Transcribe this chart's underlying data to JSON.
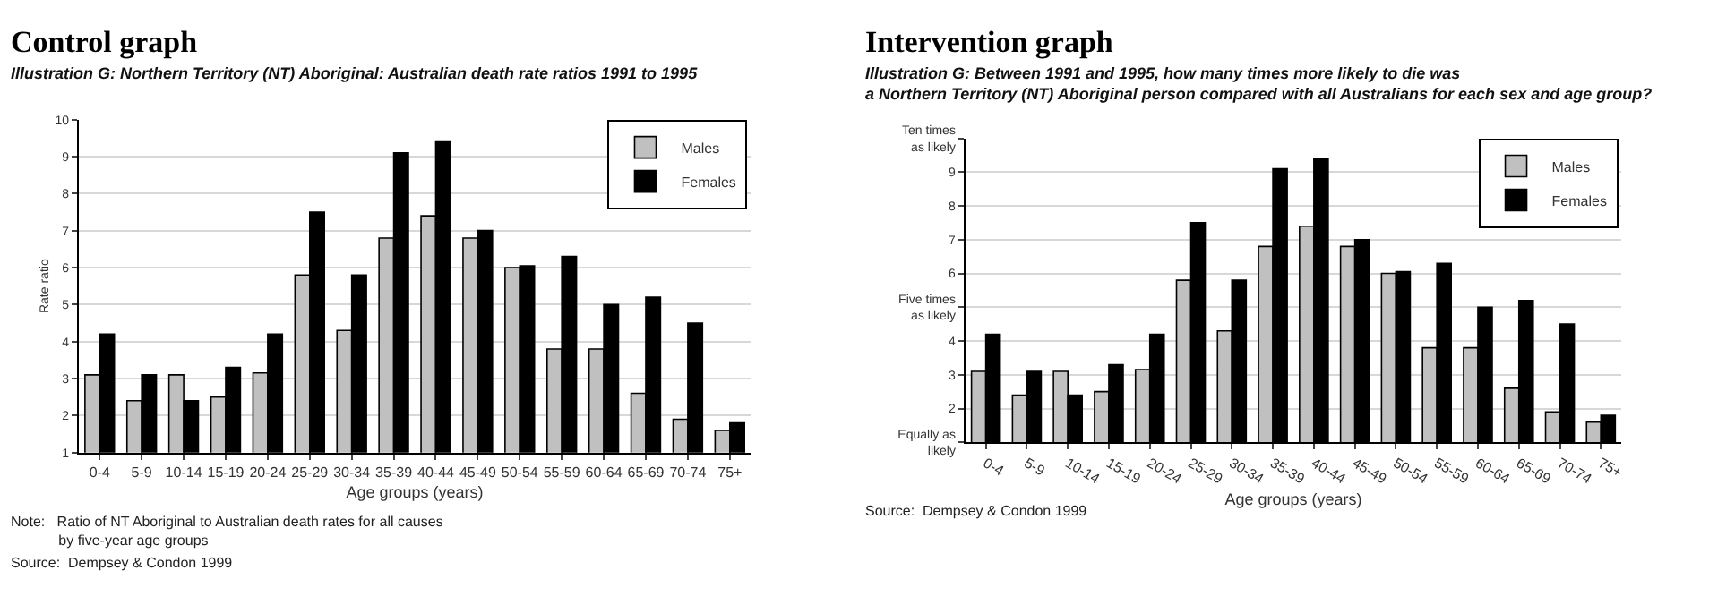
{
  "chart_data": [
    {
      "type": "bar",
      "title": "Control graph",
      "subtitle": "Illustration G: Northern Territory (NT) Aboriginal: Australian death rate ratios 1991 to 1995",
      "xlabel": "Age groups (years)",
      "ylabel": "Rate ratio",
      "categories": [
        "0-4",
        "5-9",
        "10-14",
        "15-19",
        "20-24",
        "25-29",
        "30-34",
        "35-39",
        "40-44",
        "45-49",
        "50-54",
        "55-59",
        "60-64",
        "65-69",
        "70-74",
        "75+"
      ],
      "series": [
        {
          "name": "Males",
          "color": "#c0c0c0",
          "values": [
            3.1,
            2.4,
            3.1,
            2.5,
            3.15,
            5.8,
            4.3,
            6.8,
            7.4,
            6.8,
            6.0,
            3.8,
            3.8,
            2.6,
            1.9,
            1.6
          ]
        },
        {
          "name": "Females",
          "color": "#000000",
          "values": [
            4.2,
            3.1,
            2.4,
            3.3,
            4.2,
            7.5,
            5.8,
            9.1,
            9.4,
            7.0,
            6.05,
            6.3,
            5.0,
            5.2,
            4.5,
            1.8
          ]
        }
      ],
      "ylim": [
        1,
        10
      ],
      "yticks": [
        1,
        2,
        3,
        4,
        5,
        6,
        7,
        8,
        9,
        10
      ],
      "grid": "y",
      "legend": "top right",
      "annotations": [
        "Note:   Ratio of NT Aboriginal to Australian death rates for all causes\n            by five-year age groups",
        "Source:  Dempsey & Condon 1999"
      ]
    },
    {
      "type": "bar",
      "title": "Intervention graph",
      "subtitle": "Illustration G: Between 1991 and 1995, how many times more likely to die was\na Northern Territory (NT) Aboriginal person compared with all Australians for each sex and age group?",
      "xlabel": "Age groups (years)",
      "categories": [
        "0-4",
        "5-9",
        "10-14",
        "15-19",
        "20-24",
        "25-29",
        "30-34",
        "35-39",
        "40-44",
        "45-49",
        "50-54",
        "55-59",
        "60-64",
        "65-69",
        "70-74",
        "75+"
      ],
      "series": [
        {
          "name": "Males",
          "color": "#c0c0c0",
          "values": [
            3.1,
            2.4,
            3.1,
            2.5,
            3.15,
            5.8,
            4.3,
            6.8,
            7.4,
            6.8,
            6.0,
            3.8,
            3.8,
            2.6,
            1.9,
            1.6
          ]
        },
        {
          "name": "Females",
          "color": "#000000",
          "values": [
            4.2,
            3.1,
            2.4,
            3.3,
            4.2,
            7.5,
            5.8,
            9.1,
            9.4,
            7.0,
            6.05,
            6.3,
            5.0,
            5.2,
            4.5,
            1.8
          ]
        }
      ],
      "ylim": [
        1,
        10
      ],
      "yticks": [
        {
          "value": 1,
          "label": "Equally as\nlikely"
        },
        2,
        3,
        4,
        {
          "value": 5,
          "label": "Five times\nas likely"
        },
        6,
        7,
        8,
        9,
        {
          "value": 10,
          "label": "Ten times\nas likely"
        }
      ],
      "grid": "y",
      "legend": "top right",
      "annotations": [
        "Source:  Dempsey & Condon 1999"
      ]
    }
  ]
}
